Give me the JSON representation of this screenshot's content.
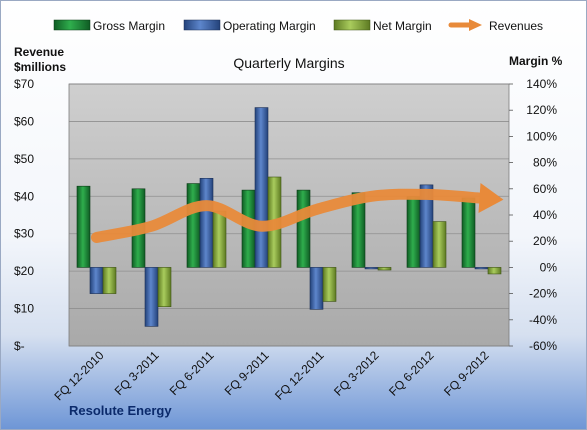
{
  "chart_data": {
    "type": "bar",
    "title": "Quarterly Margins",
    "left_axis_label_line1": "Revenue",
    "left_axis_label_line2": "$millions",
    "right_axis_label": "Margin %",
    "footer": "Resolute Energy",
    "categories": [
      "FQ 12-2010",
      "FQ 3-2011",
      "FQ 6-2011",
      "FQ 9-2011",
      "FQ 12-2011",
      "FQ 3-2012",
      "FQ 6-2012",
      "FQ 9-2012"
    ],
    "left_axis": {
      "min": 0,
      "max": 70,
      "step": 10,
      "tick_labels": [
        "$-",
        "$10",
        "$20",
        "$30",
        "$40",
        "$50",
        "$60",
        "$70"
      ]
    },
    "right_axis": {
      "min": -60,
      "max": 140,
      "step": 20,
      "tick_labels": [
        "-60%",
        "-40%",
        "-20%",
        "0%",
        "20%",
        "40%",
        "60%",
        "80%",
        "100%",
        "120%",
        "140%"
      ]
    },
    "series": [
      {
        "name": "Gross Margin",
        "kind": "bar",
        "axis": "right",
        "color": "#1f8a3b",
        "values": [
          62,
          60,
          64,
          59,
          59,
          57,
          54,
          53
        ]
      },
      {
        "name": "Operating Margin",
        "kind": "bar",
        "axis": "right",
        "color": "#3e64a8",
        "values": [
          -20,
          -45,
          68,
          122,
          -32,
          0,
          63,
          0
        ]
      },
      {
        "name": "Net Margin",
        "kind": "bar",
        "axis": "right",
        "color": "#8cb04a",
        "values": [
          -20,
          -30,
          43,
          69,
          -26,
          -2,
          35,
          -5
        ]
      },
      {
        "name": "Revenues",
        "kind": "line",
        "axis": "left",
        "color": "#e88a3a",
        "values": [
          29,
          32,
          37.5,
          32,
          36.5,
          40,
          40.5,
          39.5
        ]
      }
    ],
    "legend_position": "top",
    "grid": true
  }
}
